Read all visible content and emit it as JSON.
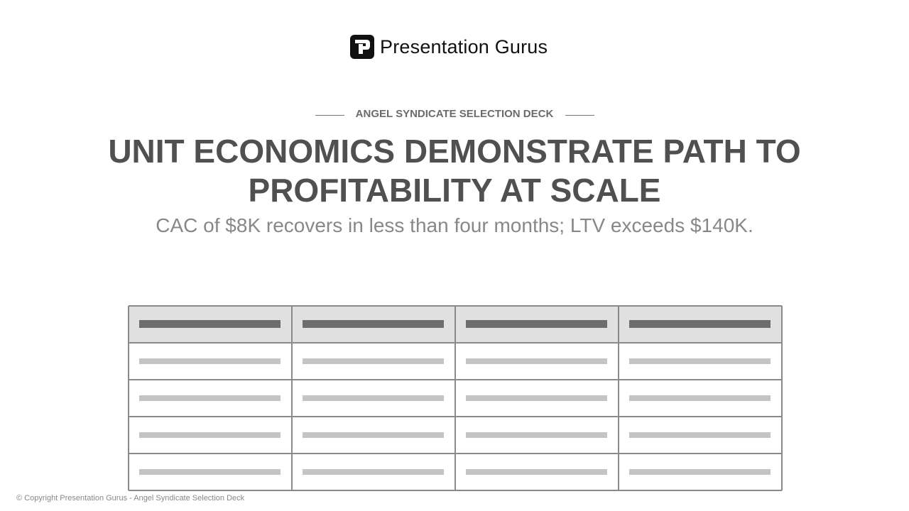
{
  "logo": {
    "text": "Presentation Gurus"
  },
  "header": {
    "eyebrow": "ANGEL SYNDICATE SELECTION DECK",
    "title": "UNIT ECONOMICS DEMONSTRATE PATH TO PROFITABILITY AT SCALE",
    "subtitle": "CAC of $8K recovers in less than four months; LTV exceeds $140K."
  },
  "footer": {
    "copyright": "© Copyright Presentation Gurus - Angel Syndicate Selection Deck"
  }
}
